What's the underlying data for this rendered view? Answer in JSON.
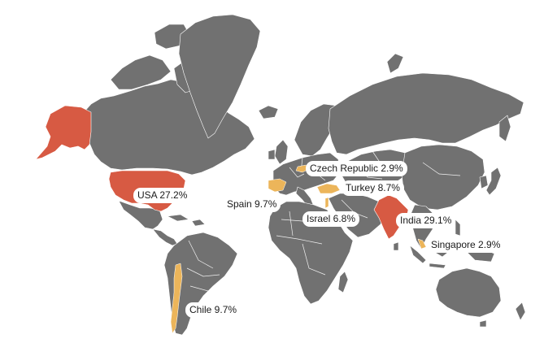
{
  "map": {
    "colors": {
      "land": "#717171",
      "high_share": "#d75a43",
      "mid_share": "#ecb55a",
      "background": "#ffffff",
      "borders": "#ffffff"
    },
    "countries": [
      {
        "id": "usa",
        "label": "USA 27.2%",
        "name": "USA",
        "percent": 27.2,
        "tier": "high"
      },
      {
        "id": "india",
        "label": "India 29.1%",
        "name": "India",
        "percent": 29.1,
        "tier": "high"
      },
      {
        "id": "spain",
        "label": "Spain 9.7%",
        "name": "Spain",
        "percent": 9.7,
        "tier": "mid"
      },
      {
        "id": "chile",
        "label": "Chile 9.7%",
        "name": "Chile",
        "percent": 9.7,
        "tier": "mid"
      },
      {
        "id": "turkey",
        "label": "Turkey 8.7%",
        "name": "Turkey",
        "percent": 8.7,
        "tier": "mid"
      },
      {
        "id": "israel",
        "label": "Israel 6.8%",
        "name": "Israel",
        "percent": 6.8,
        "tier": "mid"
      },
      {
        "id": "czech",
        "label": "Czech Republic 2.9%",
        "name": "Czech Republic",
        "percent": 2.9,
        "tier": "mid"
      },
      {
        "id": "singapore",
        "label": "Singapore 2.9%",
        "name": "Singapore",
        "percent": 2.9,
        "tier": "mid"
      }
    ]
  }
}
